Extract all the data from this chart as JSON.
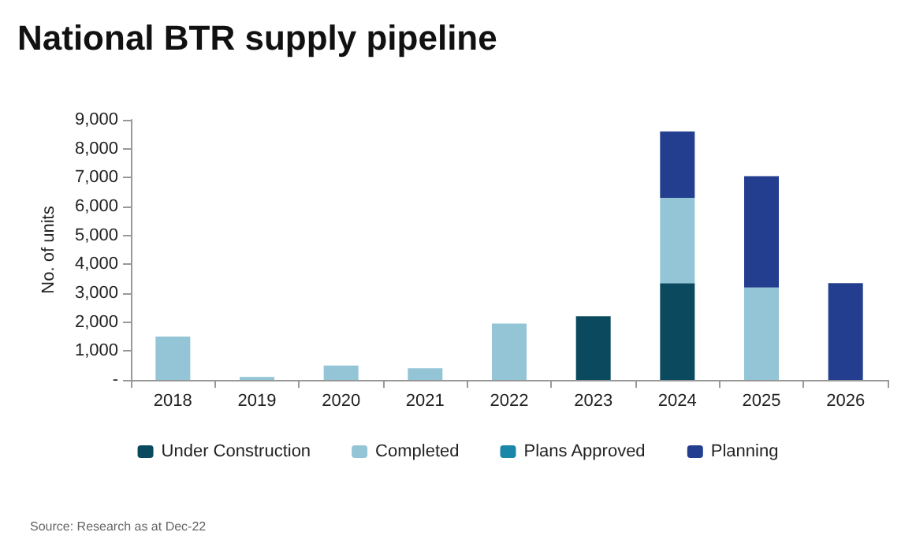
{
  "chart_data": {
    "type": "bar",
    "title": "National BTR supply pipeline",
    "ylabel": "No. of units",
    "categories": [
      "2018",
      "2019",
      "2020",
      "2021",
      "2022",
      "2023",
      "2024",
      "2025",
      "2026"
    ],
    "stacked": true,
    "series": [
      {
        "name": "Under Construction",
        "color": "#0b4a5e",
        "values": [
          null,
          null,
          null,
          null,
          null,
          2200,
          3350,
          null,
          null
        ]
      },
      {
        "name": "Completed",
        "color": "#93c5d6",
        "values": [
          1500,
          100,
          500,
          400,
          1950,
          null,
          2950,
          3200,
          null
        ]
      },
      {
        "name": "Plans Approved",
        "color": "#1a86a8",
        "values": [
          null,
          null,
          null,
          null,
          null,
          null,
          null,
          null,
          null
        ]
      },
      {
        "name": "Planning",
        "color": "#233e8f",
        "values": [
          null,
          null,
          null,
          null,
          null,
          null,
          2300,
          3850,
          3350
        ]
      }
    ],
    "ylim": [
      0,
      9000
    ],
    "yticks": [
      {
        "value": 0,
        "label": "-"
      },
      {
        "value": 1000,
        "label": "1,000"
      },
      {
        "value": 2000,
        "label": "2,000"
      },
      {
        "value": 3000,
        "label": "3,000"
      },
      {
        "value": 4000,
        "label": "4,000"
      },
      {
        "value": 5000,
        "label": "5,000"
      },
      {
        "value": 6000,
        "label": "6,000"
      },
      {
        "value": 7000,
        "label": "7,000"
      },
      {
        "value": 8000,
        "label": "8,000"
      },
      {
        "value": 9000,
        "label": "9,000"
      }
    ],
    "grid": false,
    "legend": "bottom",
    "annotations": [
      "Source: Research as at Dec-22"
    ]
  }
}
